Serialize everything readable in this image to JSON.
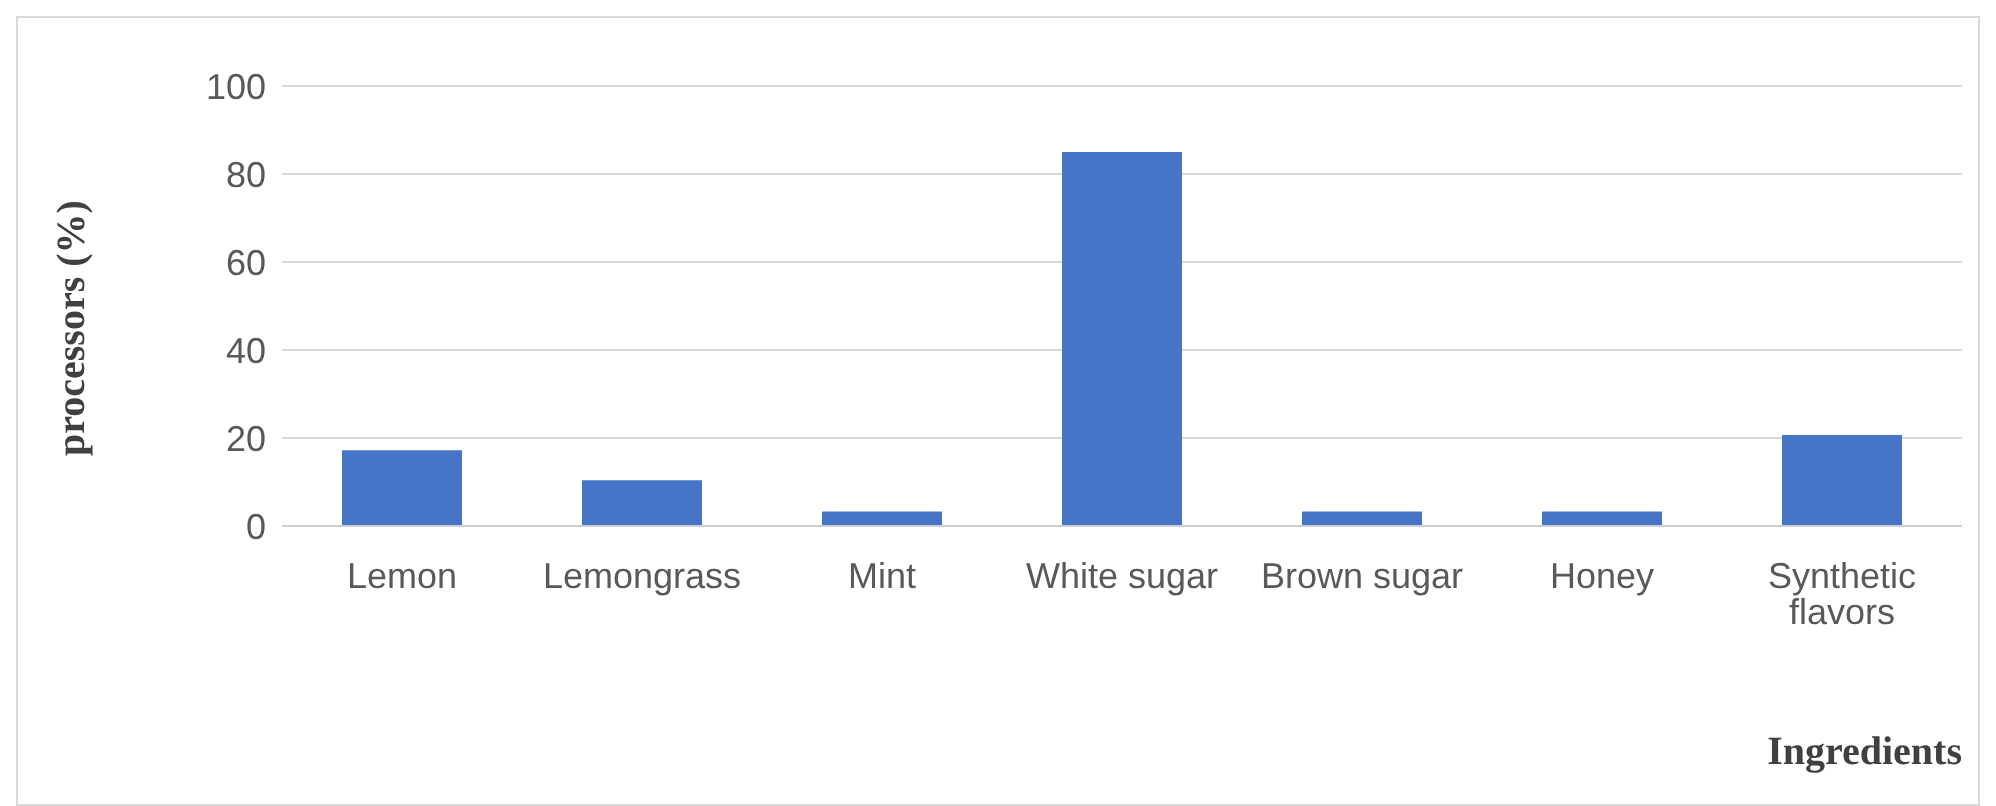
{
  "chart_data": {
    "type": "bar",
    "xlabel": "Ingredients",
    "ylabel": "processors (%)",
    "categories": [
      "Lemon",
      "Lemongrass",
      "Mint",
      "White sugar",
      "Brown sugar",
      "Honey",
      "Synthetic flavors"
    ],
    "values": [
      17.2,
      10.4,
      3.3,
      85,
      3.3,
      3.3,
      20.7
    ],
    "color": "#4674c9",
    "ylim": [
      0,
      100
    ],
    "yticks": [
      0,
      20,
      40,
      60,
      80,
      100
    ],
    "grid": "y",
    "legend": false
  }
}
